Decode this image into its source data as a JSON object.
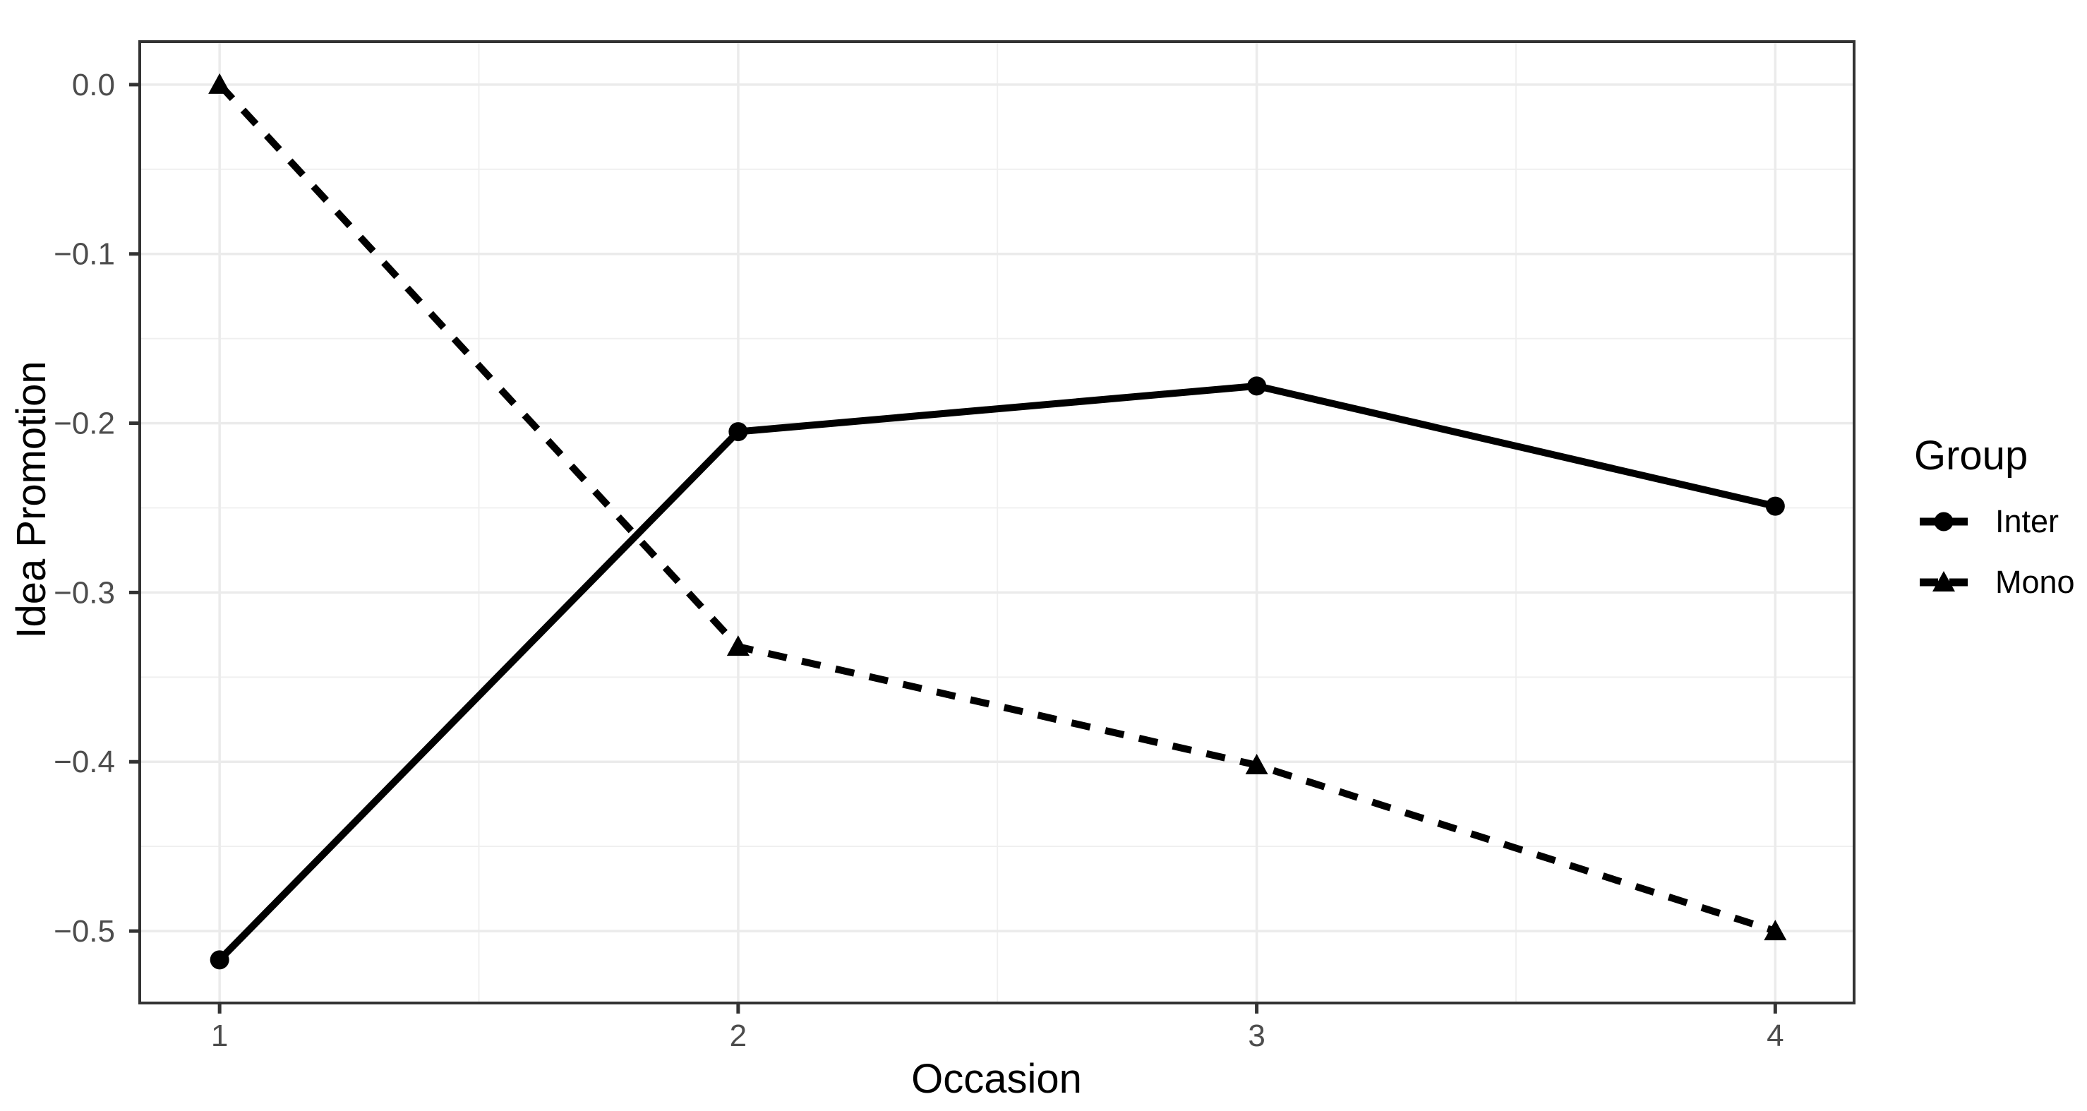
{
  "chart_data": {
    "type": "line",
    "title": "",
    "xlabel": "Occasion",
    "ylabel": "Idea Promotion",
    "x": [
      1,
      2,
      3,
      4
    ],
    "x_tick_labels": [
      "1",
      "2",
      "3",
      "4"
    ],
    "y_ticks": [
      0.0,
      -0.1,
      -0.2,
      -0.3,
      -0.4,
      -0.5
    ],
    "y_tick_labels": [
      "0.0",
      "−0.1",
      "−0.2",
      "−0.3",
      "−0.4",
      "−0.5"
    ],
    "xlim": [
      0.846,
      4.152
    ],
    "ylim": [
      -0.5425,
      0.0254
    ],
    "grid": {
      "major": true,
      "minor": true,
      "legend_position": "right"
    },
    "series": [
      {
        "name": "Inter",
        "values": [
          -0.517,
          -0.205,
          -0.178,
          -0.249
        ],
        "line": "solid",
        "marker": "circle",
        "color": "#000000"
      },
      {
        "name": "Mono",
        "values": [
          0.0,
          -0.332,
          -0.402,
          -0.5
        ],
        "line": "dashed",
        "marker": "triangle",
        "color": "#000000"
      }
    ],
    "legend": {
      "title": "Group"
    }
  },
  "styles": {
    "background": "#FFFFFF",
    "panel_border_color": "#333333",
    "tick_color": "#333333",
    "grid_major_color": "#EBEBEB",
    "grid_minor_color": "#EFEFEF",
    "axis_text_color": "#4D4D4D",
    "axis_title_color": "#000000"
  }
}
